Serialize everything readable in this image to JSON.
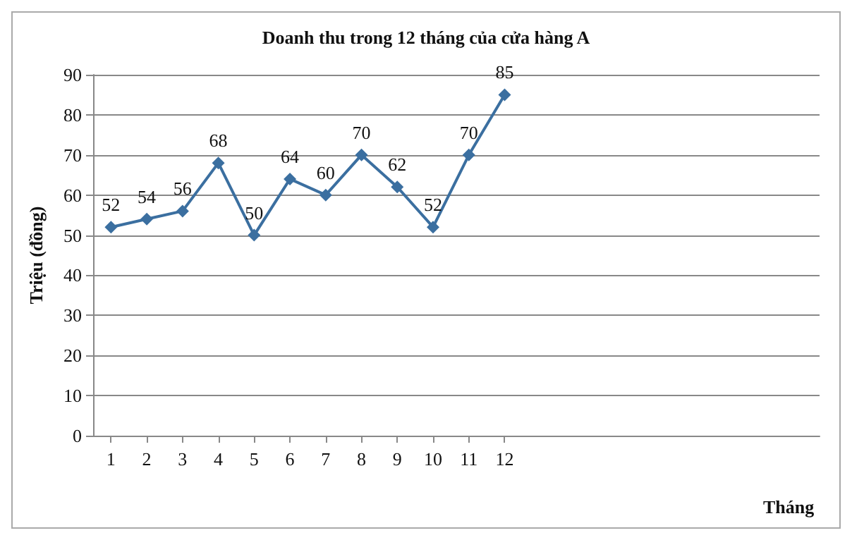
{
  "chart_data": {
    "type": "line",
    "title": "Doanh thu trong 12 tháng của cửa hàng A",
    "xlabel": "Tháng",
    "ylabel": "Triệu (đồng)",
    "x": [
      1,
      2,
      3,
      4,
      5,
      6,
      7,
      8,
      9,
      10,
      11,
      12
    ],
    "series": [
      {
        "color": "#3b6fa0",
        "values": [
          52,
          54,
          56,
          68,
          50,
          64,
          60,
          70,
          62,
          52,
          70,
          85
        ]
      }
    ],
    "xlim": [
      0.5,
      20.8
    ],
    "xticks": [
      1,
      2,
      3,
      4,
      5,
      6,
      7,
      8,
      9,
      10,
      11,
      12
    ],
    "ylim": [
      0,
      90
    ],
    "yticks": [
      0,
      10,
      20,
      30,
      40,
      50,
      60,
      70,
      80,
      90
    ],
    "grid": "y",
    "marker": "diamond",
    "line_style": "solid",
    "data_labels": true
  }
}
